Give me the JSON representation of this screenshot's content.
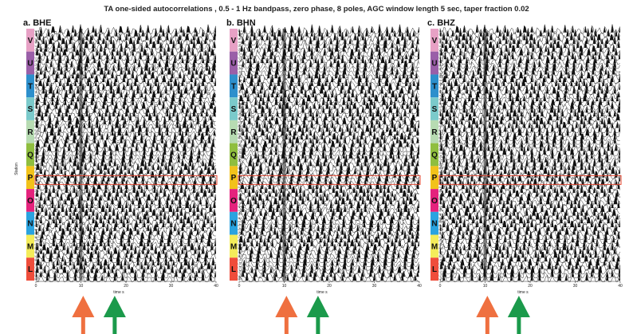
{
  "chart_data": {
    "type": "waveform-section",
    "title": "TA one-sided autocorrelations , 0.5 - 1 Hz bandpass, zero phase, 8 poles, AGC window length 5 sec, taper fraction 0.02",
    "xlabel": "time s",
    "ylabel": "Station",
    "xlim": [
      0,
      40
    ],
    "xticks": [
      0,
      10,
      20,
      30,
      40
    ],
    "panels": [
      {
        "label": "a. BHE"
      },
      {
        "label": "b. BHN"
      },
      {
        "label": "c. BHZ"
      }
    ],
    "station_groups": [
      {
        "name": "V",
        "color": "#e7a1c5"
      },
      {
        "name": "U",
        "color": "#9a5fa8"
      },
      {
        "name": "T",
        "color": "#2d8fcc"
      },
      {
        "name": "S",
        "color": "#7bcacb"
      },
      {
        "name": "R",
        "color": "#b7dbb2"
      },
      {
        "name": "Q",
        "color": "#8fbe3f"
      },
      {
        "name": "P",
        "color": "#f2c21a"
      },
      {
        "name": "O",
        "color": "#e5237d"
      },
      {
        "name": "N",
        "color": "#2aa3e0"
      },
      {
        "name": "M",
        "color": "#f4ec5a"
      },
      {
        "name": "L",
        "color": "#ef4d3b"
      }
    ],
    "highlighted_group": "P",
    "traces_per_group": 6,
    "arrows": [
      {
        "color": "#ef7040",
        "time": 10.5
      },
      {
        "color": "#1b9a4b",
        "time": 17.5
      }
    ]
  }
}
